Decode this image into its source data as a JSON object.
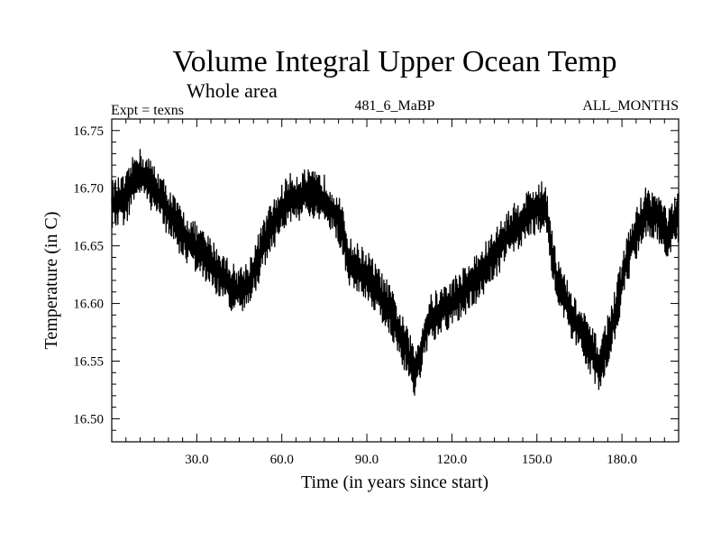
{
  "chart_data": {
    "type": "line",
    "title": "Volume Integral Upper Ocean Temp",
    "subtitle": "Whole area",
    "annotations": {
      "left": "Expt = texns",
      "center": "481_6_MaBP",
      "right": "ALL_MONTHS"
    },
    "xlabel": "Time (in years since start)",
    "ylabel": "Temperature (in C)",
    "xlim": [
      0,
      200
    ],
    "ylim": [
      16.48,
      16.76
    ],
    "x_ticks": [
      30,
      60,
      90,
      120,
      150,
      180
    ],
    "x_tick_labels": [
      "30.0",
      "60.0",
      "90.0",
      "120.0",
      "150.0",
      "180.0"
    ],
    "y_ticks": [
      16.5,
      16.55,
      16.6,
      16.65,
      16.7,
      16.75
    ],
    "y_tick_labels": [
      "16.50",
      "16.55",
      "16.60",
      "16.65",
      "16.70",
      "16.75"
    ],
    "series": [
      {
        "name": "Volume Integral Upper Ocean Temp",
        "color": "#000000",
        "noise_amplitude": 0.022,
        "samples_per_year": 6,
        "trend": {
          "x": [
            0,
            5,
            9,
            15,
            25,
            35,
            44,
            48,
            55,
            62,
            68,
            75,
            80,
            84,
            90,
            98,
            103,
            107,
            112,
            120,
            130,
            140,
            148,
            153,
            157,
            163,
            168,
            172,
            177,
            182,
            188,
            193,
            196,
            200
          ],
          "y": [
            16.685,
            16.69,
            16.715,
            16.7,
            16.66,
            16.635,
            16.61,
            16.615,
            16.66,
            16.69,
            16.695,
            16.69,
            16.675,
            16.635,
            16.625,
            16.595,
            16.565,
            16.54,
            16.585,
            16.6,
            16.625,
            16.66,
            16.68,
            16.685,
            16.62,
            16.585,
            16.565,
            16.545,
            16.585,
            16.64,
            16.68,
            16.675,
            16.66,
            16.675
          ]
        }
      }
    ]
  }
}
